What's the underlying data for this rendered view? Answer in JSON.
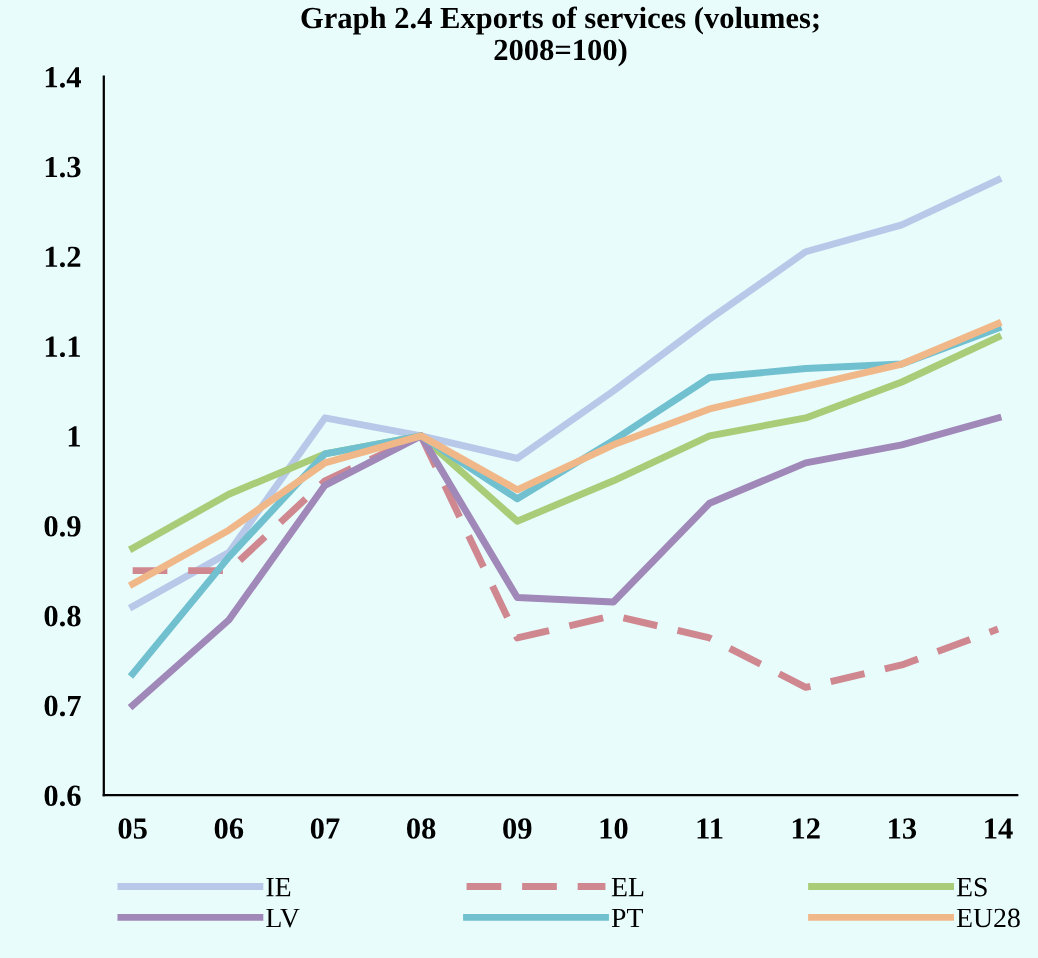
{
  "chart_data": {
    "type": "line",
    "title": "Graph 2.4 Exports of services (volumes;\n2008=100)",
    "categories": [
      "05",
      "06",
      "07",
      "08",
      "09",
      "10",
      "11",
      "12",
      "13",
      "14"
    ],
    "series": [
      {
        "name": "IE",
        "color": "#b8c8e8",
        "values": [
          0.81,
          0.87,
          1.02,
          1.0,
          0.975,
          1.05,
          1.13,
          1.205,
          1.235,
          1.285
        ]
      },
      {
        "name": "EL",
        "color": "#d08890",
        "line_style": "dashed",
        "values": [
          0.85,
          0.85,
          0.95,
          1.0,
          0.775,
          0.8,
          0.775,
          0.72,
          0.745,
          0.785
        ]
      },
      {
        "name": "ES",
        "color": "#a8cc78",
        "values": [
          0.875,
          0.935,
          0.98,
          1.0,
          0.905,
          0.95,
          1.0,
          1.02,
          1.06,
          1.11
        ]
      },
      {
        "name": "LV",
        "color": "#a088b8",
        "values": [
          0.7,
          0.795,
          0.945,
          1.0,
          0.82,
          0.815,
          0.925,
          0.97,
          0.99,
          1.02
        ]
      },
      {
        "name": "PT",
        "color": "#70c0d0",
        "values": [
          0.735,
          0.865,
          0.98,
          1.0,
          0.93,
          0.995,
          1.065,
          1.075,
          1.08,
          1.12
        ]
      },
      {
        "name": "EU28",
        "color": "#f0b888",
        "values": [
          0.835,
          0.895,
          0.97,
          1.0,
          0.94,
          0.99,
          1.03,
          1.055,
          1.08,
          1.125
        ]
      }
    ],
    "ylim": [
      0.6,
      1.4
    ],
    "yticks": [
      {
        "value": 0.6,
        "label": "0.6"
      },
      {
        "value": 0.7,
        "label": "0.7"
      },
      {
        "value": 0.8,
        "label": "0.8"
      },
      {
        "value": 0.9,
        "label": "0.9"
      },
      {
        "value": 1.0,
        "label": "1"
      },
      {
        "value": 1.1,
        "label": "1.1"
      },
      {
        "value": 1.2,
        "label": "1.2"
      },
      {
        "value": 1.3,
        "label": "1.3"
      },
      {
        "value": 1.4,
        "label": "1.4"
      }
    ],
    "grid": false,
    "legend": "bottom",
    "line_style": "solid",
    "marker": "none"
  }
}
